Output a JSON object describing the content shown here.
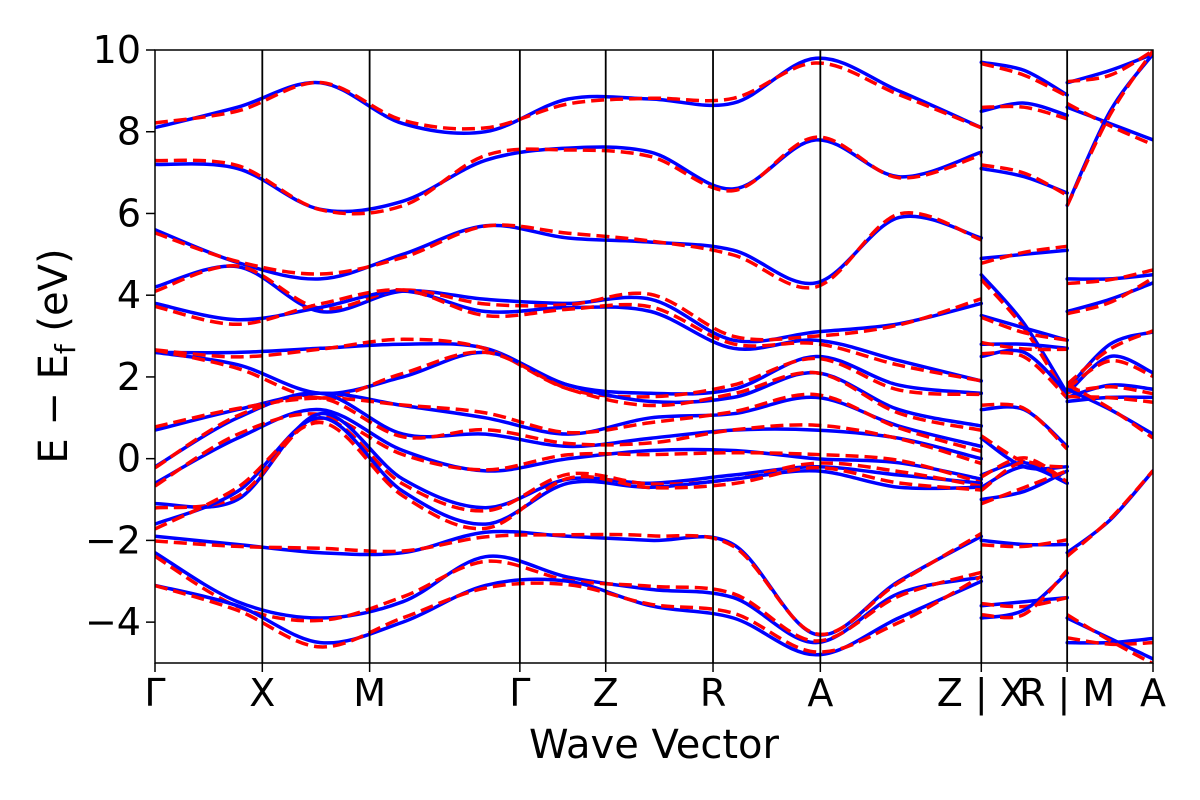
{
  "chart_data": {
    "type": "line",
    "title": "",
    "xlabel": "Wave Vector",
    "ylabel_main": "E − E",
    "ylabel_sub": "f",
    "ylabel_unit": " (eV)",
    "ylim": [
      -5,
      10
    ],
    "yticks": [
      -4,
      -2,
      0,
      2,
      4,
      6,
      8,
      10
    ],
    "ytick_labels": [
      "−4",
      "−2",
      "0",
      "2",
      "4",
      "6",
      "8",
      "10"
    ],
    "xlim": [
      0,
      9.3
    ],
    "kpoints": [
      {
        "label": "Γ",
        "x": 0
      },
      {
        "label": "X",
        "x": 1.0
      },
      {
        "label": "M",
        "x": 2.0
      },
      {
        "label": "Γ",
        "x": 3.4
      },
      {
        "label": "Z",
        "x": 4.2
      },
      {
        "label": "R",
        "x": 5.2
      },
      {
        "label": "A",
        "x": 6.2
      },
      {
        "label": "Z | X",
        "x": 7.7
      },
      {
        "label": "R | M",
        "x": 8.5
      },
      {
        "label": "A",
        "x": 9.3
      }
    ],
    "grid": false,
    "legend": "none",
    "series_styles": [
      {
        "id": "solid",
        "color": "#0000ff",
        "dash": "solid"
      },
      {
        "id": "dashed",
        "color": "#ff0000",
        "dash": "dashed"
      }
    ],
    "segments": [
      {
        "x0": 0,
        "x1": 7.7,
        "bands": [
          [
            8.1,
            8.6,
            9.2,
            8.2,
            8.0,
            8.8,
            8.8,
            8.7,
            9.8,
            9.0,
            8.1
          ],
          [
            7.2,
            7.1,
            6.1,
            6.3,
            7.3,
            7.6,
            7.5,
            6.6,
            7.8,
            6.9,
            7.5
          ],
          [
            5.6,
            4.8,
            4.4,
            5.0,
            5.7,
            5.4,
            5.3,
            5.1,
            4.3,
            5.9,
            5.4
          ],
          [
            4.2,
            4.7,
            3.6,
            4.1,
            3.9,
            3.8,
            3.9,
            2.9,
            3.1,
            3.3,
            3.8
          ],
          [
            3.8,
            3.4,
            3.7,
            4.1,
            3.6,
            3.7,
            3.6,
            2.7,
            2.9,
            2.4,
            1.9
          ],
          [
            2.6,
            2.6,
            2.7,
            2.8,
            2.7,
            1.8,
            1.6,
            1.7,
            2.5,
            1.8,
            1.6
          ],
          [
            2.6,
            2.3,
            1.6,
            2.0,
            2.6,
            1.8,
            1.4,
            1.5,
            2.1,
            1.2,
            0.8
          ],
          [
            0.7,
            1.2,
            1.6,
            1.3,
            1.0,
            0.6,
            1.0,
            1.1,
            1.5,
            0.8,
            0.3
          ],
          [
            -0.2,
            1.0,
            1.6,
            0.6,
            0.6,
            0.3,
            0.5,
            0.7,
            0.7,
            0.5,
            0.0
          ],
          [
            -0.6,
            0.5,
            1.2,
            0.2,
            -0.3,
            0.0,
            0.2,
            0.2,
            0.0,
            -0.1,
            -0.5
          ],
          [
            -1.1,
            -1.0,
            1.1,
            -0.5,
            -1.2,
            -0.5,
            -0.6,
            -0.4,
            -0.2,
            -0.4,
            -0.6
          ],
          [
            -1.6,
            -0.8,
            1.0,
            -0.8,
            -1.6,
            -0.6,
            -0.7,
            -0.5,
            -0.3,
            -0.7,
            -0.7
          ],
          [
            -1.9,
            -2.1,
            -2.3,
            -2.3,
            -1.8,
            -1.9,
            -2.0,
            -2.1,
            -4.3,
            -3.0,
            -1.9
          ],
          [
            -2.3,
            -3.5,
            -3.9,
            -3.5,
            -2.4,
            -2.9,
            -3.2,
            -3.4,
            -4.5,
            -3.3,
            -2.9
          ],
          [
            -3.1,
            -3.6,
            -4.5,
            -4.0,
            -3.1,
            -3.0,
            -3.6,
            -3.9,
            -4.8,
            -3.9,
            -3.0
          ]
        ]
      },
      {
        "x0": 7.7,
        "x1": 8.5,
        "bands": [
          [
            9.7,
            9.5,
            8.9
          ],
          [
            8.5,
            8.7,
            8.4
          ],
          [
            7.1,
            6.9,
            6.5
          ],
          [
            4.9,
            5.0,
            5.1
          ],
          [
            4.5,
            3.3,
            1.6
          ],
          [
            3.5,
            3.2,
            2.9
          ],
          [
            2.8,
            2.8,
            2.7
          ],
          [
            2.5,
            2.6,
            1.6
          ],
          [
            1.2,
            1.2,
            0.3
          ],
          [
            0.5,
            -0.2,
            -0.2
          ],
          [
            -0.4,
            -0.1,
            -0.6
          ],
          [
            -0.7,
            -0.2,
            -0.6
          ],
          [
            -1.0,
            -0.8,
            -0.3
          ],
          [
            -2.0,
            -2.1,
            -2.1
          ],
          [
            -3.6,
            -3.5,
            -3.4
          ],
          [
            -3.9,
            -3.7,
            -2.8
          ]
        ]
      },
      {
        "x0": 8.5,
        "x1": 9.3,
        "bands": [
          [
            9.2,
            9.5,
            9.9
          ],
          [
            8.6,
            8.2,
            7.8
          ],
          [
            6.2,
            8.5,
            9.9
          ],
          [
            4.4,
            4.4,
            4.5
          ],
          [
            3.6,
            3.9,
            4.3
          ],
          [
            1.7,
            2.8,
            3.1
          ],
          [
            1.6,
            2.5,
            2.1
          ],
          [
            1.5,
            1.8,
            1.7
          ],
          [
            1.4,
            1.5,
            1.5
          ],
          [
            1.7,
            1.2,
            0.6
          ],
          [
            -2.3,
            -1.5,
            -0.3
          ],
          [
            -4.5,
            -4.5,
            -4.4
          ],
          [
            -3.9,
            -4.4,
            -4.9
          ]
        ]
      }
    ]
  }
}
